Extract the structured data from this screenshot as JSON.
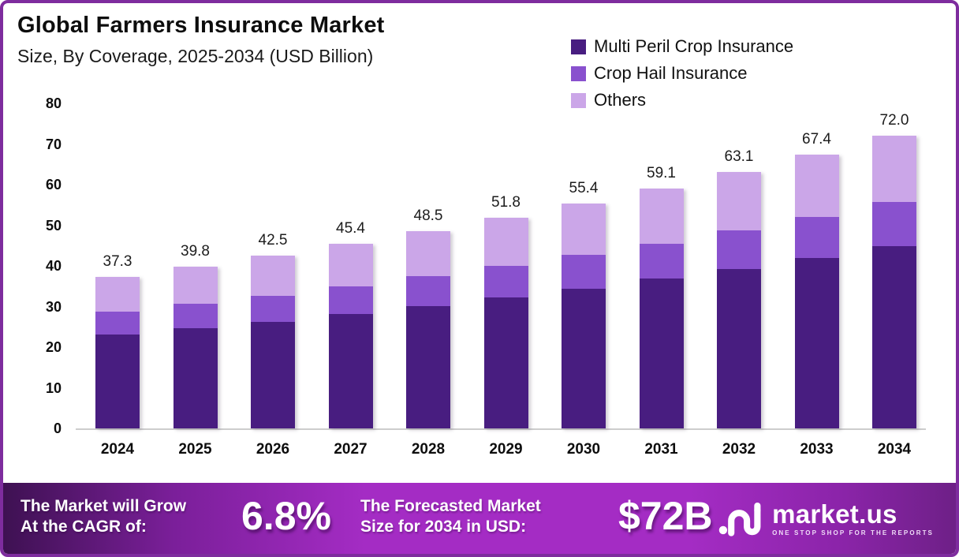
{
  "header": {
    "title": "Global Farmers Insurance Market",
    "subtitle": "Size, By Coverage, 2025-2034 (USD Billion)"
  },
  "legend": [
    {
      "label": "Multi Peril Crop Insurance",
      "color": "#481d80"
    },
    {
      "label": "Crop Hail Insurance",
      "color": "#8951ce"
    },
    {
      "label": "Others",
      "color": "#cba6e8"
    }
  ],
  "chart_data": {
    "type": "bar",
    "stacked": true,
    "title": "Global Farmers Insurance Market Size, By Coverage, 2025-2034 (USD Billion)",
    "xlabel": "",
    "ylabel": "",
    "ylim": [
      0,
      80
    ],
    "yticks": [
      0,
      10,
      20,
      30,
      40,
      50,
      60,
      70,
      80
    ],
    "grid": false,
    "legend_position": "top-right",
    "categories": [
      "2024",
      "2025",
      "2026",
      "2027",
      "2028",
      "2029",
      "2030",
      "2031",
      "2032",
      "2033",
      "2034"
    ],
    "series": [
      {
        "name": "Multi Peril Crop Insurance",
        "color": "#481d80",
        "values": [
          23.2,
          24.6,
          26.3,
          28.2,
          30.1,
          32.3,
          34.4,
          36.8,
          39.2,
          41.9,
          44.9
        ]
      },
      {
        "name": "Crop Hail Insurance",
        "color": "#8951ce",
        "values": [
          5.5,
          6.1,
          6.3,
          6.7,
          7.4,
          7.7,
          8.3,
          8.7,
          9.5,
          10.2,
          10.8
        ]
      },
      {
        "name": "Others",
        "color": "#cba6e8",
        "values": [
          8.6,
          9.1,
          9.9,
          10.5,
          11.0,
          11.8,
          12.7,
          13.6,
          14.4,
          15.3,
          16.3
        ]
      }
    ],
    "totals": [
      37.3,
      39.8,
      42.5,
      45.4,
      48.5,
      51.8,
      55.4,
      59.1,
      63.1,
      67.4,
      72.0
    ]
  },
  "footer": {
    "cagr_label_line1": "The Market will Grow",
    "cagr_label_line2": "At the CAGR of:",
    "cagr_value": "6.8%",
    "forecast_label_line1": "The Forecasted Market",
    "forecast_label_line2": "Size for 2034 in USD:",
    "forecast_value": "$72B",
    "logo_name": "market.us",
    "logo_tagline": "ONE STOP SHOP FOR THE REPORTS"
  },
  "colors": {
    "frame_border": "#7e2c9e",
    "banner_gradient_left": "#3e1152",
    "banner_gradient_mid": "#a42cc4",
    "banner_gradient_right": "#6e2087",
    "axis_line": "#cdcdcd",
    "text": "#0d0d0d"
  }
}
